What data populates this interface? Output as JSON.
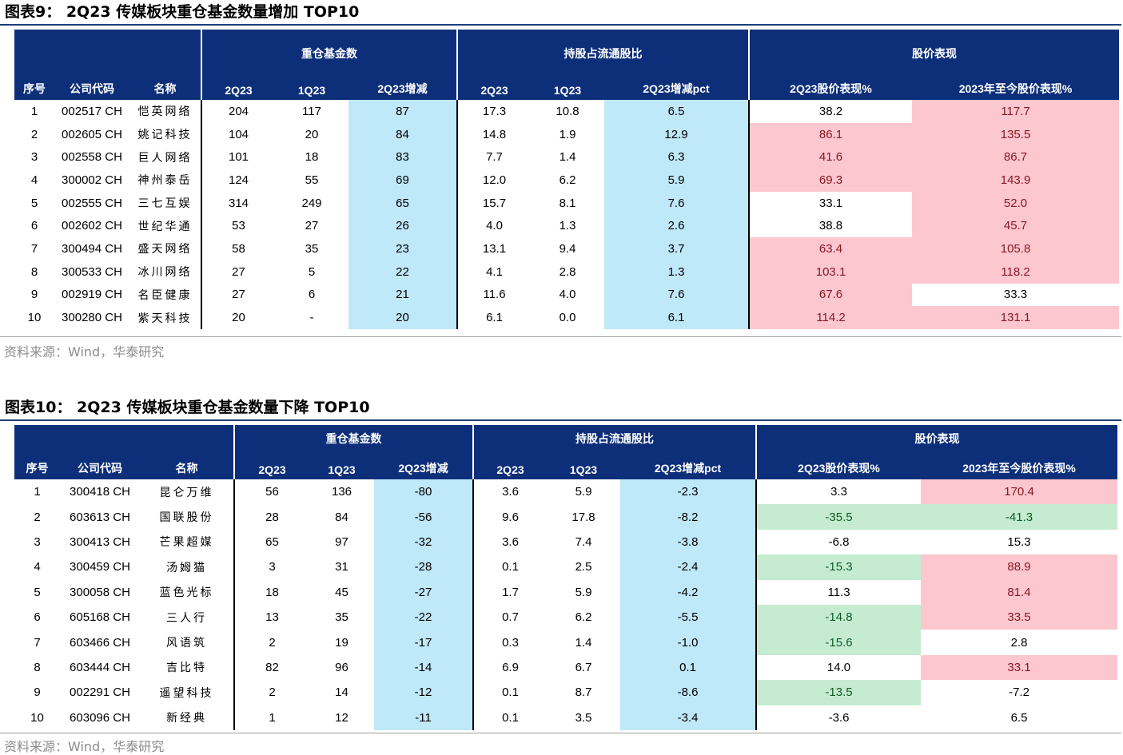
{
  "table1": {
    "title": "图表9：  2Q23 传媒板块重仓基金数量增加 TOP10",
    "group_headers": [
      "重仓基金数",
      "持股占流通股比",
      "股价表现"
    ],
    "columns": [
      "序号",
      "公司代码",
      "名称",
      "2Q23",
      "1Q23",
      "2Q23增减",
      "2Q23",
      "1Q23",
      "2Q23增减pct",
      "2Q23股价表现%",
      "2023年至今股价表现%"
    ],
    "rows": [
      [
        "1",
        "002517 CH",
        "恺英网络",
        "204",
        "117",
        "87",
        "17.3",
        "10.8",
        "6.5",
        "38.2",
        "117.7"
      ],
      [
        "2",
        "002605 CH",
        "姚记科技",
        "104",
        "20",
        "84",
        "14.8",
        "1.9",
        "12.9",
        "86.1",
        "135.5"
      ],
      [
        "3",
        "002558 CH",
        "巨人网络",
        "101",
        "18",
        "83",
        "7.7",
        "1.4",
        "6.3",
        "41.6",
        "86.7"
      ],
      [
        "4",
        "300002 CH",
        "神州泰岳",
        "124",
        "55",
        "69",
        "12.0",
        "6.2",
        "5.9",
        "69.3",
        "143.9"
      ],
      [
        "5",
        "002555 CH",
        "三七互娱",
        "314",
        "249",
        "65",
        "15.7",
        "8.1",
        "7.6",
        "33.1",
        "52.0"
      ],
      [
        "6",
        "002602 CH",
        "世纪华通",
        "53",
        "27",
        "26",
        "4.0",
        "1.3",
        "2.6",
        "38.8",
        "45.7"
      ],
      [
        "7",
        "300494 CH",
        "盛天网络",
        "58",
        "35",
        "23",
        "13.1",
        "9.4",
        "3.7",
        "63.4",
        "105.8"
      ],
      [
        "8",
        "300533 CH",
        "冰川网络",
        "27",
        "5",
        "22",
        "4.1",
        "2.8",
        "1.3",
        "103.1",
        "118.2"
      ],
      [
        "9",
        "002919 CH",
        "名臣健康",
        "27",
        "6",
        "21",
        "11.6",
        "4.0",
        "7.6",
        "67.6",
        "33.3"
      ],
      [
        "10",
        "300280 CH",
        "紫天科技",
        "20",
        "-",
        "20",
        "6.1",
        "0.0",
        "6.1",
        "114.2",
        "131.1"
      ]
    ],
    "perf_colors": [
      [
        "white",
        "pink"
      ],
      [
        "pink",
        "pink"
      ],
      [
        "pink",
        "pink"
      ],
      [
        "pink",
        "pink"
      ],
      [
        "white",
        "pink"
      ],
      [
        "white",
        "pink"
      ],
      [
        "pink",
        "pink"
      ],
      [
        "pink",
        "pink"
      ],
      [
        "pink",
        "white"
      ],
      [
        "pink",
        "pink"
      ]
    ],
    "source": "资料来源：Wind，华泰研究"
  },
  "table2": {
    "title": "图表10：  2Q23 传媒板块重仓基金数量下降 TOP10",
    "group_headers": [
      "重仓基金数",
      "持股占流通股比",
      "股价表现"
    ],
    "columns": [
      "序号",
      "公司代码",
      "名称",
      "2Q23",
      "1Q23",
      "2Q23增减",
      "2Q23",
      "1Q23",
      "2Q23增减pct",
      "2Q23股价表现%",
      "2023年至今股价表现%"
    ],
    "rows": [
      [
        "1",
        "300418 CH",
        "昆仑万维",
        "56",
        "136",
        "-80",
        "3.6",
        "5.9",
        "-2.3",
        "3.3",
        "170.4"
      ],
      [
        "2",
        "603613 CH",
        "国联股份",
        "28",
        "84",
        "-56",
        "9.6",
        "17.8",
        "-8.2",
        "-35.5",
        "-41.3"
      ],
      [
        "3",
        "300413 CH",
        "芒果超媒",
        "65",
        "97",
        "-32",
        "3.6",
        "7.4",
        "-3.8",
        "-6.8",
        "15.3"
      ],
      [
        "4",
        "300459 CH",
        "汤姆猫",
        "3",
        "31",
        "-28",
        "0.1",
        "2.5",
        "-2.4",
        "-15.3",
        "88.9"
      ],
      [
        "5",
        "300058 CH",
        "蓝色光标",
        "18",
        "45",
        "-27",
        "1.7",
        "5.9",
        "-4.2",
        "11.3",
        "81.4"
      ],
      [
        "6",
        "605168 CH",
        "三人行",
        "13",
        "35",
        "-22",
        "0.7",
        "6.2",
        "-5.5",
        "-14.8",
        "33.5"
      ],
      [
        "7",
        "603466 CH",
        "风语筑",
        "2",
        "19",
        "-17",
        "0.3",
        "1.4",
        "-1.0",
        "-15.6",
        "2.8"
      ],
      [
        "8",
        "603444 CH",
        "吉比特",
        "82",
        "96",
        "-14",
        "6.9",
        "6.7",
        "0.1",
        "14.0",
        "33.1"
      ],
      [
        "9",
        "002291 CH",
        "遥望科技",
        "2",
        "14",
        "-12",
        "0.1",
        "8.7",
        "-8.6",
        "-13.5",
        "-7.2"
      ],
      [
        "10",
        "603096 CH",
        "新经典",
        "1",
        "12",
        "-11",
        "0.1",
        "3.5",
        "-3.4",
        "-3.6",
        "6.5"
      ]
    ],
    "perf_colors": [
      [
        "white",
        "pink"
      ],
      [
        "green",
        "green"
      ],
      [
        "white",
        "white"
      ],
      [
        "green",
        "pink"
      ],
      [
        "white",
        "pink"
      ],
      [
        "green",
        "pink"
      ],
      [
        "green",
        "white"
      ],
      [
        "white",
        "pink"
      ],
      [
        "green",
        "white"
      ],
      [
        "white",
        "white"
      ]
    ],
    "source": "资料来源：Wind，华泰研究"
  },
  "colors": {
    "header_bg": "#0d2f7a",
    "blue_fill": "#bfe8f8",
    "pink_fill": "#fcc7cf",
    "green_fill": "#c5ecd0"
  }
}
